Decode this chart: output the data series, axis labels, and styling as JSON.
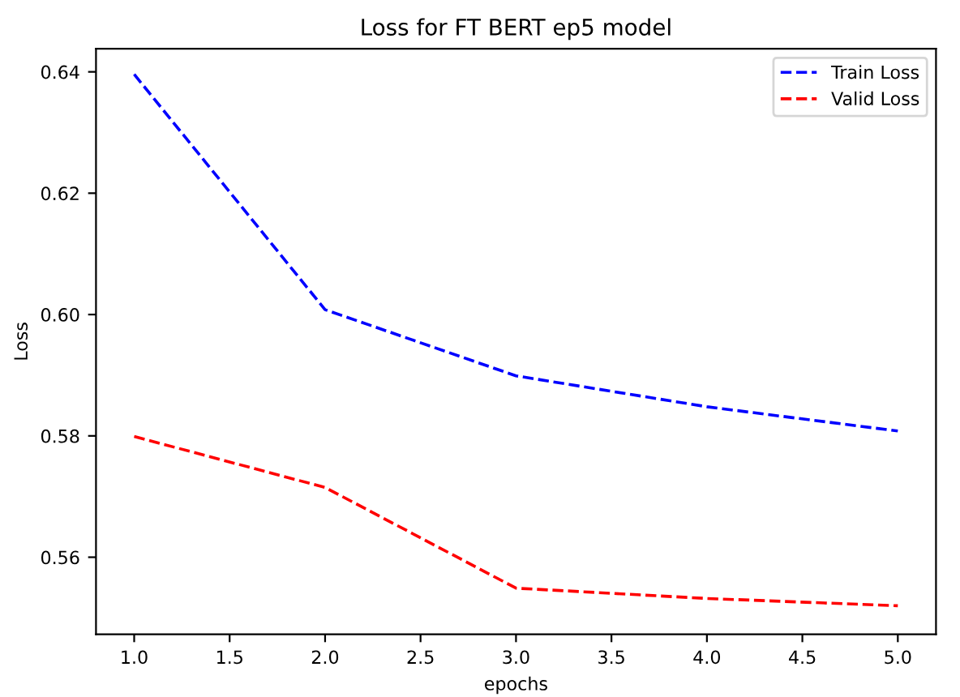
{
  "chart_data": {
    "type": "line",
    "title": "Loss for FT BERT ep5 model",
    "xlabel": "epochs",
    "ylabel": "Loss",
    "x": [
      1,
      2,
      3,
      4,
      5
    ],
    "series": [
      {
        "name": "Train Loss",
        "color": "#0000ff",
        "values": [
          0.6396,
          0.6008,
          0.5899,
          0.5848,
          0.5808
        ]
      },
      {
        "name": "Valid Loss",
        "color": "#ff0000",
        "values": [
          0.5799,
          0.5715,
          0.5549,
          0.5532,
          0.552
        ]
      }
    ],
    "line_style": "dashed",
    "legend": "top right",
    "grid": false,
    "xlim": [
      0.8,
      5.2
    ],
    "ylim": [
      0.5473,
      0.6438
    ],
    "xticks": [
      {
        "value": 1,
        "label": "1.0"
      },
      {
        "value": 1.5,
        "label": "1.5"
      },
      {
        "value": 2,
        "label": "2.0"
      },
      {
        "value": 2.5,
        "label": "2.5"
      },
      {
        "value": 3,
        "label": "3.0"
      },
      {
        "value": 3.5,
        "label": "3.5"
      },
      {
        "value": 4,
        "label": "4.0"
      },
      {
        "value": 4.5,
        "label": "4.5"
      },
      {
        "value": 5,
        "label": "5.0"
      }
    ],
    "yticks": [
      {
        "value": 0.56,
        "label": "0.56"
      },
      {
        "value": 0.58,
        "label": "0.58"
      },
      {
        "value": 0.6,
        "label": "0.60"
      },
      {
        "value": 0.62,
        "label": "0.62"
      },
      {
        "value": 0.64,
        "label": "0.64"
      }
    ]
  }
}
